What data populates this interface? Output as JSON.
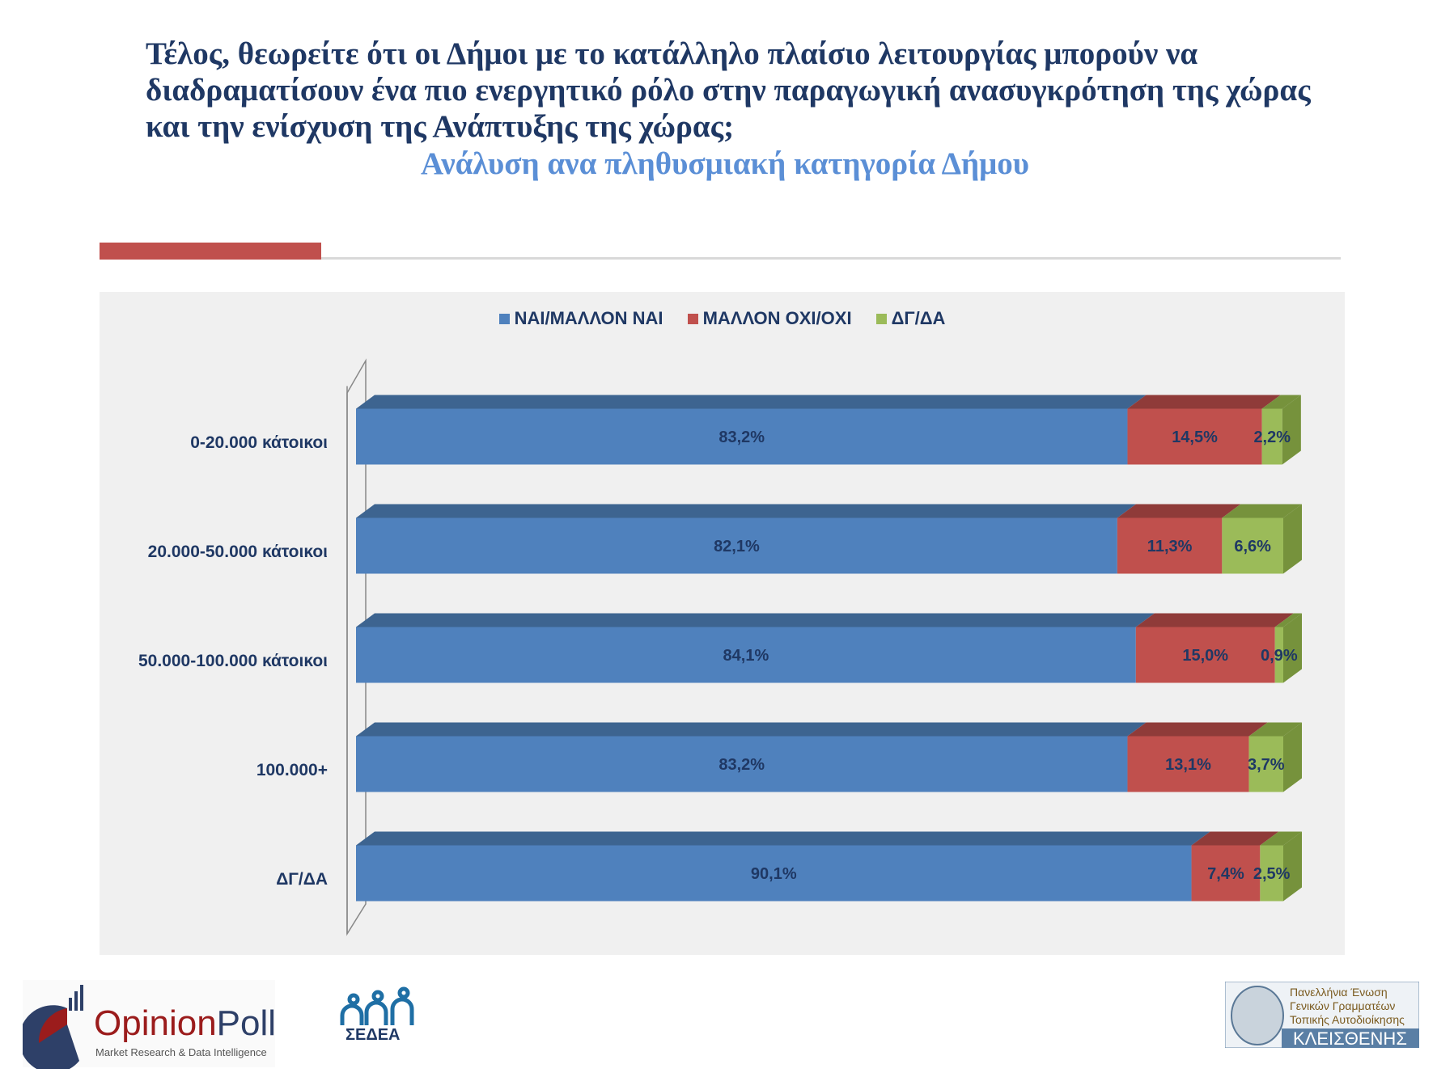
{
  "header": {
    "title": "Τέλος, θεωρείτε ότι οι Δήμοι με το κατάλληλο πλαίσιο λειτουργίας μπορούν να διαδραματίσουν ένα πιο ενεργητικό ρόλο στην παραγωγική ανασυγκρότηση της χώρας και την ενίσχυση της Ανάπτυξης της χώρας;",
    "subtitle": "Ανάλυση ανα πληθυσμιακή κατηγορία Δήμου"
  },
  "chart_data": {
    "type": "bar",
    "orientation": "horizontal-stacked-100",
    "categories": [
      "0-20.000 κάτοικοι",
      "20.000-50.000 κάτοικοι",
      "50.000-100.000 κάτοικοι",
      "100.000+",
      "ΔΓ/ΔΑ"
    ],
    "series": [
      {
        "name": "ΝΑΙ/ΜΑΛΛΟΝ ΝΑΙ",
        "color": "#4f81bd",
        "top": "#3d6490",
        "values": [
          83.2,
          82.1,
          84.1,
          83.2,
          90.1
        ],
        "labels": [
          "83,2%",
          "82,1%",
          "84,1%",
          "83,2%",
          "90,1%"
        ]
      },
      {
        "name": "ΜΑΛΛΟΝ ΟΧΙ/ΟΧΙ",
        "color": "#c0504d",
        "top": "#8f3b39",
        "values": [
          14.5,
          11.3,
          15.0,
          13.1,
          7.4
        ],
        "labels": [
          "14,5%",
          "11,3%",
          "15,0%",
          "13,1%",
          "7,4%"
        ]
      },
      {
        "name": "ΔΓ/ΔΑ",
        "color": "#9bbb59",
        "top": "#76923c",
        "values": [
          2.2,
          6.6,
          0.9,
          3.7,
          2.5
        ],
        "labels": [
          "2,2%",
          "6,6%",
          "0,9%",
          "3,7%",
          "2,5%"
        ]
      }
    ],
    "xlim": [
      0,
      100
    ],
    "legend": "top-center",
    "grid": false
  },
  "logos": {
    "opinionpoll": {
      "name": "OpinionPoll",
      "tagline": "Market Research & Data Intelligence"
    },
    "sedea": {
      "name": "ΣΕΔΕΑ"
    },
    "kleisthenis": {
      "line1": "Πανελλήνια Ένωση",
      "line2": "Γενικών Γραμματέων",
      "line3": "Τοπικής Αυτοδιοίκησης",
      "name": "ΚΛΕΙΣΘΕΝΗΣ"
    }
  }
}
